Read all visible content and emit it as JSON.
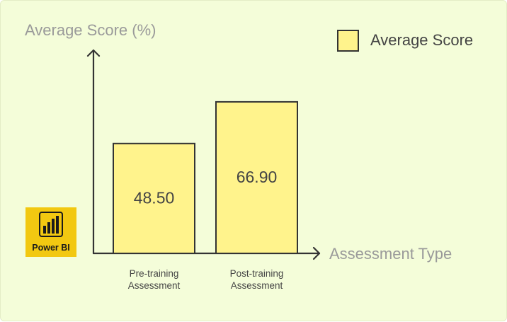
{
  "chart_data": {
    "type": "bar",
    "categories": [
      "Pre-training\nAssessment",
      "Post-training\nAssessment"
    ],
    "series": [
      {
        "name": "Average Score",
        "values": [
          48.5,
          66.9
        ]
      }
    ],
    "value_labels": [
      "48.50",
      "66.90"
    ],
    "title": "",
    "xlabel": "Assessment Type",
    "ylabel": "Average Score (%)",
    "ylim": [
      0,
      100
    ],
    "grid": false,
    "legend_position": "top-right",
    "bar_color": "#fff38c",
    "background_color": "#f4fdd9",
    "axis_color": "#333333"
  },
  "logo": {
    "text": "Power BI",
    "icon": "power-bi-icon",
    "color": "#f2c811"
  }
}
